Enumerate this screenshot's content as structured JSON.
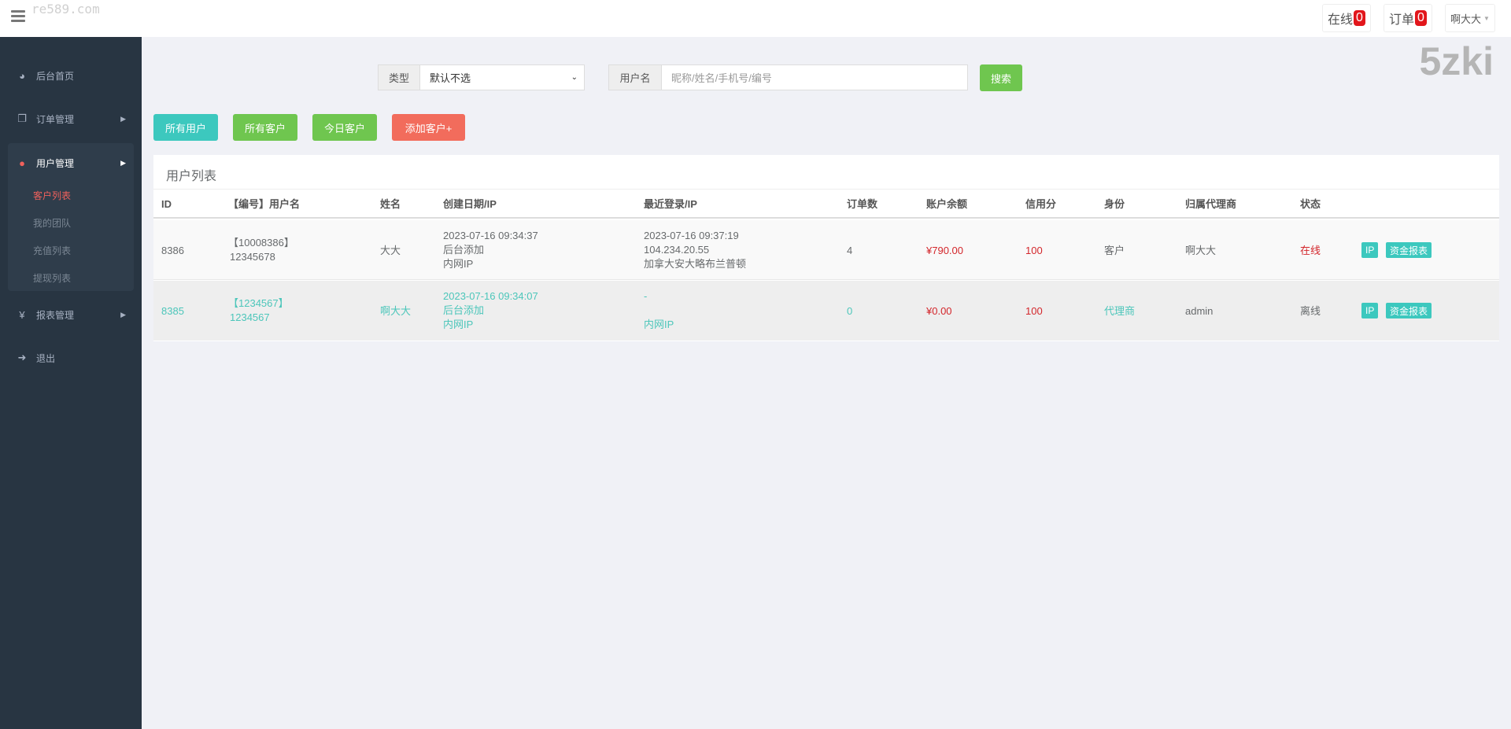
{
  "watermarks": [
    "re589.com",
    "5zki"
  ],
  "topbar": {
    "online_label": "在线",
    "online_count": "0",
    "orders_label": "订单",
    "orders_count": "0",
    "user": "啊大大"
  },
  "sidebar": {
    "items": [
      {
        "label": "后台首页",
        "icon": "dashboard-icon"
      },
      {
        "label": "订单管理",
        "icon": "copy-icon"
      },
      {
        "label": "用户管理",
        "icon": "user-icon"
      },
      {
        "label": "报表管理",
        "icon": "yen-icon"
      },
      {
        "label": "退出",
        "icon": "sign-out-icon"
      }
    ],
    "sub_items": [
      "客户列表",
      "我的团队",
      "充值列表",
      "提现列表"
    ],
    "active_sub": "客户列表"
  },
  "filter": {
    "type_label": "类型",
    "type_value": "默认不选",
    "username_label": "用户名",
    "username_placeholder": "昵称/姓名/手机号/编号",
    "search_label": "搜索"
  },
  "buttons": {
    "all_users": "所有用户",
    "all_customers": "所有客户",
    "today_customers": "今日客户",
    "add_customer": "添加客户+"
  },
  "colors": {
    "teal": "#3cc8be",
    "green": "#6fc64f",
    "red": "#f26c5c",
    "sidebar": "#283542"
  },
  "table": {
    "title": "用户列表",
    "headers": [
      "ID",
      "【编号】用户名",
      "姓名",
      "创建日期/IP",
      "最近登录/IP",
      "订单数",
      "账户余额",
      "信用分",
      "身份",
      "归属代理商",
      "状态"
    ],
    "rows": [
      {
        "id": "8386",
        "code": "【10008386】",
        "username": "12345678",
        "name": "大大",
        "created": "2023-07-16 09:34:37",
        "created_by": "后台添加",
        "created_ip": "内网IP",
        "login": "2023-07-16 09:37:19",
        "login_ip": "104.234.20.55",
        "login_loc": "加拿大安大略布兰普顿",
        "orders": "4",
        "balance": "¥790.00",
        "credit": "100",
        "identity": "客户",
        "agent": "啊大大",
        "status": "在线",
        "ip_btn": "IP",
        "report_btn": "资金报表"
      },
      {
        "id": "8385",
        "code": "【1234567】",
        "username": "1234567",
        "name": "啊大大",
        "created": "2023-07-16 09:34:07",
        "created_by": "后台添加",
        "created_ip": "内网IP",
        "login": "-",
        "login_ip": "",
        "login_loc": "内网IP",
        "orders": "0",
        "balance": "¥0.00",
        "credit": "100",
        "identity": "代理商",
        "agent": "admin",
        "status": "离线",
        "ip_btn": "IP",
        "report_btn": "资金报表"
      }
    ]
  }
}
